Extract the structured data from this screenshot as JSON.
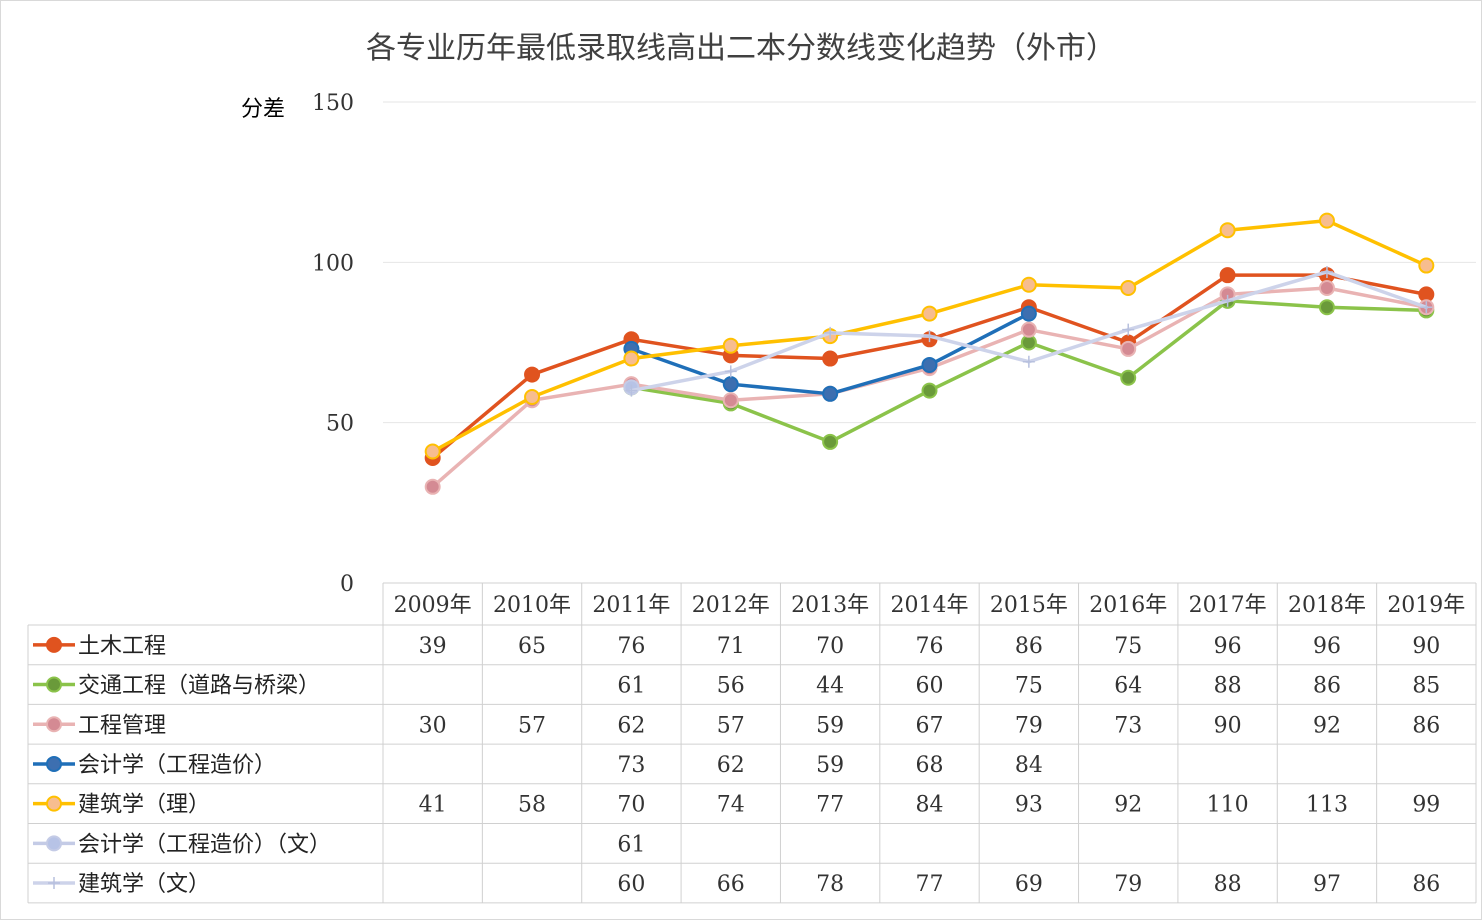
{
  "chart_data": {
    "type": "line",
    "title": "各专业历年最低录取线高出二本分数线变化趋势（外市）",
    "ylabel": "分差",
    "xlabel": "",
    "ylim": [
      0,
      150
    ],
    "yticks": [
      0,
      50,
      100,
      150
    ],
    "grid": true,
    "legend": "data-table-left",
    "categories": [
      "2009年",
      "2010年",
      "2011年",
      "2012年",
      "2013年",
      "2014年",
      "2015年",
      "2016年",
      "2017年",
      "2018年",
      "2019年"
    ],
    "series": [
      {
        "name": "土木工程",
        "color": "#e0531f",
        "marker": "#e0531f",
        "values": [
          39,
          65,
          76,
          71,
          70,
          76,
          86,
          75,
          96,
          96,
          90
        ]
      },
      {
        "name": "交通工程（道路与桥梁）",
        "color": "#8bc34a",
        "marker": "#6a9a3a",
        "values": [
          null,
          null,
          61,
          56,
          44,
          60,
          75,
          64,
          88,
          86,
          85
        ]
      },
      {
        "name": "工程管理",
        "color": "#e9b3b3",
        "marker": "#d48a93",
        "values": [
          30,
          57,
          62,
          57,
          59,
          67,
          79,
          73,
          90,
          92,
          86
        ]
      },
      {
        "name": "会计学（工程造价）",
        "color": "#1f6fb8",
        "marker": "#3d6fb0",
        "values": [
          null,
          null,
          73,
          62,
          59,
          68,
          84,
          null,
          null,
          null,
          null
        ]
      },
      {
        "name": "建筑学（理）",
        "color": "#ffc000",
        "marker": "#f7bd8f",
        "values": [
          41,
          58,
          70,
          74,
          77,
          84,
          93,
          92,
          110,
          113,
          99
        ]
      },
      {
        "name": "会计学（工程造价）（文）",
        "color": "#c4cbe6",
        "marker": "#b7c3e6",
        "values": [
          null,
          null,
          61,
          null,
          null,
          null,
          null,
          null,
          null,
          null,
          null
        ]
      },
      {
        "name": "建筑学（文）",
        "color": "#cdd3ea",
        "marker": "plus",
        "values": [
          null,
          null,
          60,
          66,
          78,
          77,
          69,
          79,
          88,
          97,
          86
        ]
      }
    ]
  }
}
